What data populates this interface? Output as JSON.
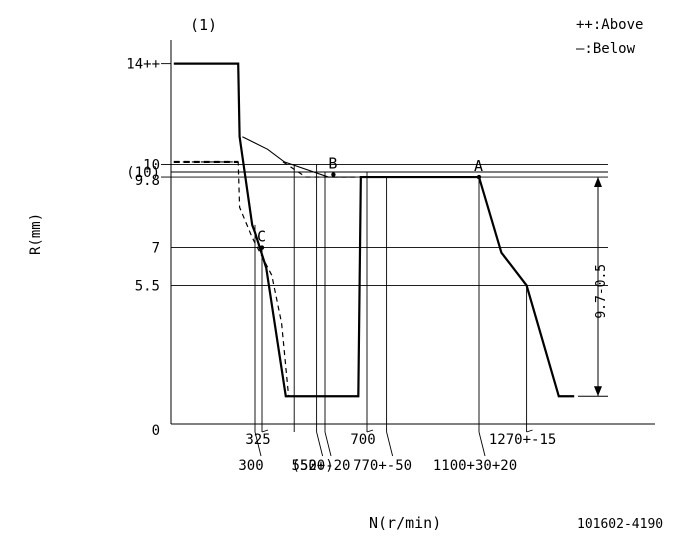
{
  "chart_data": {
    "type": "line",
    "title": "(1)",
    "xlabel": "N(r/min)",
    "ylabel": "R(mm)",
    "code": "101602-4190",
    "legend": {
      "placement": "top-right",
      "above": "++:Above",
      "below": "—:Below"
    },
    "y_ticks": [
      {
        "value": 14.3,
        "label": "14++"
      },
      {
        "value": 10.3,
        "label": "10"
      },
      {
        "value": 10.0,
        "label": "(10)"
      },
      {
        "value": 9.8,
        "label": "9.8"
      },
      {
        "value": 7,
        "label": "7"
      },
      {
        "value": 5.5,
        "label": "5.5"
      },
      {
        "value": 0,
        "label": "0"
      }
    ],
    "x_ticks": [
      {
        "value": 300,
        "label": "300",
        "row": 2
      },
      {
        "value": 325,
        "label": "325",
        "row": 1
      },
      {
        "value": 520,
        "label": "(520)",
        "row": 2
      },
      {
        "value": 550,
        "label": "550+-20",
        "row": 2
      },
      {
        "value": 700,
        "label": "700",
        "row": 1
      },
      {
        "value": 770,
        "label": "770+-50",
        "row": 2
      },
      {
        "value": 1100,
        "label": "1100+30+20",
        "row": 2
      },
      {
        "value": 1270,
        "label": "1270+-15",
        "row": 1
      }
    ],
    "series": [
      {
        "style": "solid-thick",
        "x": [
          10,
          240,
          245,
          290,
          300,
          340,
          410,
          655,
          669,
          678,
          765,
          1057,
          1100,
          1180,
          1270,
          1385,
          1440
        ],
        "y": [
          14.3,
          14.3,
          11.4,
          7.9,
          7.6,
          6.2,
          1.1,
          1.1,
          1.1,
          9.8,
          9.8,
          9.8,
          9.8,
          6.8,
          5.5,
          1.1,
          1.1
        ]
      },
      {
        "style": "solid-thin",
        "x": [
          255,
          345,
          405,
          562,
          655
        ],
        "y": [
          11.4,
          10.9,
          10.4,
          9.8,
          9.8
        ]
      },
      {
        "style": "dashed",
        "x": [
          10,
          240,
          245,
          290,
          360,
          395,
          420,
          490
        ],
        "y": [
          10.4,
          10.4,
          8.6,
          7.4,
          5.9,
          4.0,
          1.1,
          1.1
        ]
      },
      {
        "style": "dashed",
        "x": [
          400,
          482,
          678
        ],
        "y": [
          10.4,
          9.8,
          9.8
        ]
      }
    ],
    "points": [
      {
        "label": "A",
        "x": 1100,
        "y": 9.8
      },
      {
        "label": "B",
        "x": 580,
        "y": 9.9
      },
      {
        "label": "C",
        "x": 325,
        "y": 7
      }
    ],
    "dimension": {
      "label": "9.7-0.5",
      "y_from": 9.8,
      "y_to": 1.1
    },
    "guides_h": [
      10.3,
      10.0,
      9.8,
      7,
      5.5
    ],
    "guides_v": [
      300,
      325,
      440,
      520,
      550,
      700,
      770,
      1100,
      1270
    ],
    "xlim": [
      0,
      1600
    ],
    "ylim": [
      0,
      15
    ]
  }
}
